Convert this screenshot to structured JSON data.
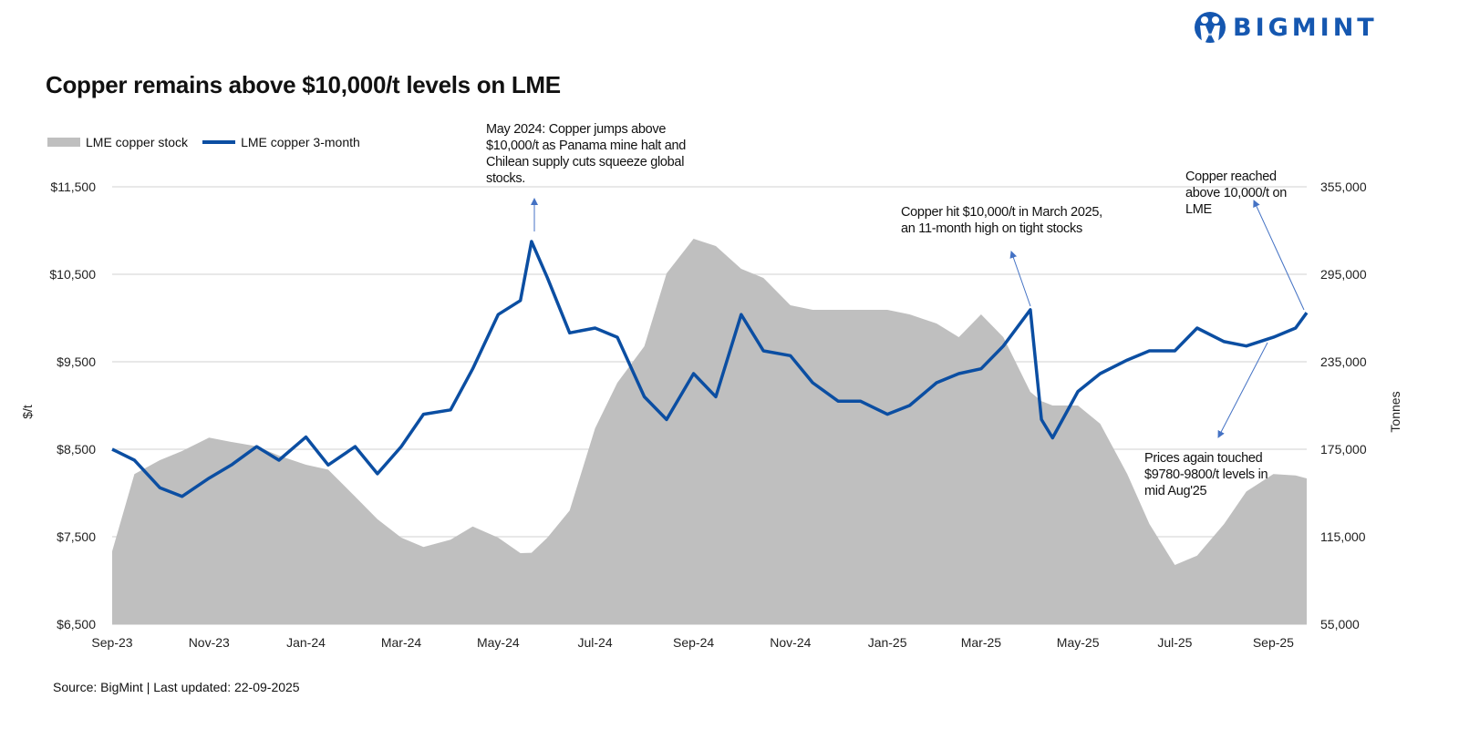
{
  "brand": {
    "name": "BIGMINT",
    "color": "#1557b0"
  },
  "title": "Copper remains above $10,000/t levels on LME",
  "source": "Source: BigMint | Last updated: 22-09-2025",
  "annotations": [
    {
      "id": "may24",
      "text": "May 2024: Copper jumps above\n$10,000/t as Panama mine halt and\nChilean supply cuts squeeze global\nstocks."
    },
    {
      "id": "mar25",
      "text": "Copper hit $10,000/t in March 2025,\nan 11-month high on tight stocks"
    },
    {
      "id": "sep25",
      "text": "Copper reached\nabove 10,000/t on\nLME"
    },
    {
      "id": "aug25",
      "text": "Prices again touched\n$9780-9800/t levels in\nmid Aug'25"
    }
  ],
  "chart_data": {
    "type": "line+area",
    "title": "Copper remains above $10,000/t levels on LME",
    "legend_position": "top-left",
    "grid": "horizontal",
    "colors": {
      "price": "#0b4ea2",
      "stock": "#bfbfbf",
      "grid": "#d9d9d9",
      "arrow": "#4472c4"
    },
    "x_tick_labels": [
      "Sep-23",
      "Nov-23",
      "Jan-24",
      "Mar-24",
      "May-24",
      "Jul-24",
      "Sep-24",
      "Nov-24",
      "Jan-25",
      "Mar-25",
      "May-25",
      "Jul-25",
      "Sep-25"
    ],
    "x_tick_dates": [
      "2023-09-01",
      "2023-11-01",
      "2024-01-01",
      "2024-03-01",
      "2024-05-01",
      "2024-07-01",
      "2024-09-01",
      "2024-11-01",
      "2025-01-01",
      "2025-03-01",
      "2025-05-01",
      "2025-07-01",
      "2025-09-01"
    ],
    "x_range": [
      "2023-09-01",
      "2025-09-22"
    ],
    "y_left": {
      "label": "$/t",
      "range": [
        6500,
        11500
      ],
      "ticks": [
        6500,
        7500,
        8500,
        9500,
        10500,
        11500
      ],
      "tick_labels": [
        "$6,500",
        "$7,500",
        "$8,500",
        "$9,500",
        "$10,500",
        "$11,500"
      ]
    },
    "y_right": {
      "label": "Tonnes",
      "range": [
        55000,
        355000
      ],
      "ticks": [
        55000,
        115000,
        175000,
        235000,
        295000,
        355000
      ],
      "tick_labels": [
        "55,000",
        "115,000",
        "175,000",
        "235,000",
        "295,000",
        "355,000"
      ]
    },
    "dates": [
      "2023-09-01",
      "2023-09-15",
      "2023-10-01",
      "2023-10-15",
      "2023-11-01",
      "2023-11-15",
      "2023-12-01",
      "2023-12-15",
      "2024-01-01",
      "2024-01-15",
      "2024-02-01",
      "2024-02-15",
      "2024-03-01",
      "2024-03-15",
      "2024-04-01",
      "2024-04-15",
      "2024-05-01",
      "2024-05-15",
      "2024-05-22",
      "2024-06-01",
      "2024-06-15",
      "2024-07-01",
      "2024-07-15",
      "2024-08-01",
      "2024-08-15",
      "2024-09-01",
      "2024-09-15",
      "2024-10-01",
      "2024-10-15",
      "2024-11-01",
      "2024-11-15",
      "2024-12-01",
      "2024-12-15",
      "2025-01-01",
      "2025-01-15",
      "2025-02-01",
      "2025-02-15",
      "2025-03-01",
      "2025-03-15",
      "2025-04-01",
      "2025-04-08",
      "2025-04-15",
      "2025-05-01",
      "2025-05-15",
      "2025-06-01",
      "2025-06-15",
      "2025-07-01",
      "2025-07-15",
      "2025-08-01",
      "2025-08-15",
      "2025-09-01",
      "2025-09-15",
      "2025-09-22"
    ],
    "series": [
      {
        "name": "LME copper stock",
        "axis": "right",
        "type": "area",
        "values": [
          105000,
          158000,
          167500,
          173750,
          183000,
          180000,
          177000,
          170600,
          164400,
          161000,
          142500,
          127000,
          114400,
          108000,
          113000,
          122000,
          114400,
          103750,
          104000,
          114400,
          133000,
          189400,
          220600,
          245600,
          295600,
          319400,
          314400,
          298750,
          292500,
          273750,
          270600,
          270600,
          270600,
          270600,
          267500,
          261250,
          251900,
          267500,
          251900,
          214400,
          208000,
          205000,
          205000,
          192500,
          158000,
          123750,
          95600,
          102000,
          123750,
          146000,
          158000,
          157000,
          155000
        ]
      },
      {
        "name": "LME copper 3-month",
        "axis": "left",
        "type": "line",
        "values": [
          8500,
          8375,
          8060,
          7960,
          8170,
          8320,
          8530,
          8375,
          8640,
          8320,
          8530,
          8220,
          8530,
          8900,
          8950,
          9420,
          10040,
          10200,
          10875,
          10460,
          9830,
          9885,
          9780,
          9100,
          8840,
          9365,
          9100,
          10040,
          9625,
          9570,
          9260,
          9050,
          9050,
          8900,
          9000,
          9260,
          9365,
          9420,
          9680,
          10095,
          8840,
          8630,
          9160,
          9365,
          9520,
          9625,
          9625,
          9885,
          9730,
          9680,
          9780,
          9885,
          10060
        ]
      }
    ]
  }
}
